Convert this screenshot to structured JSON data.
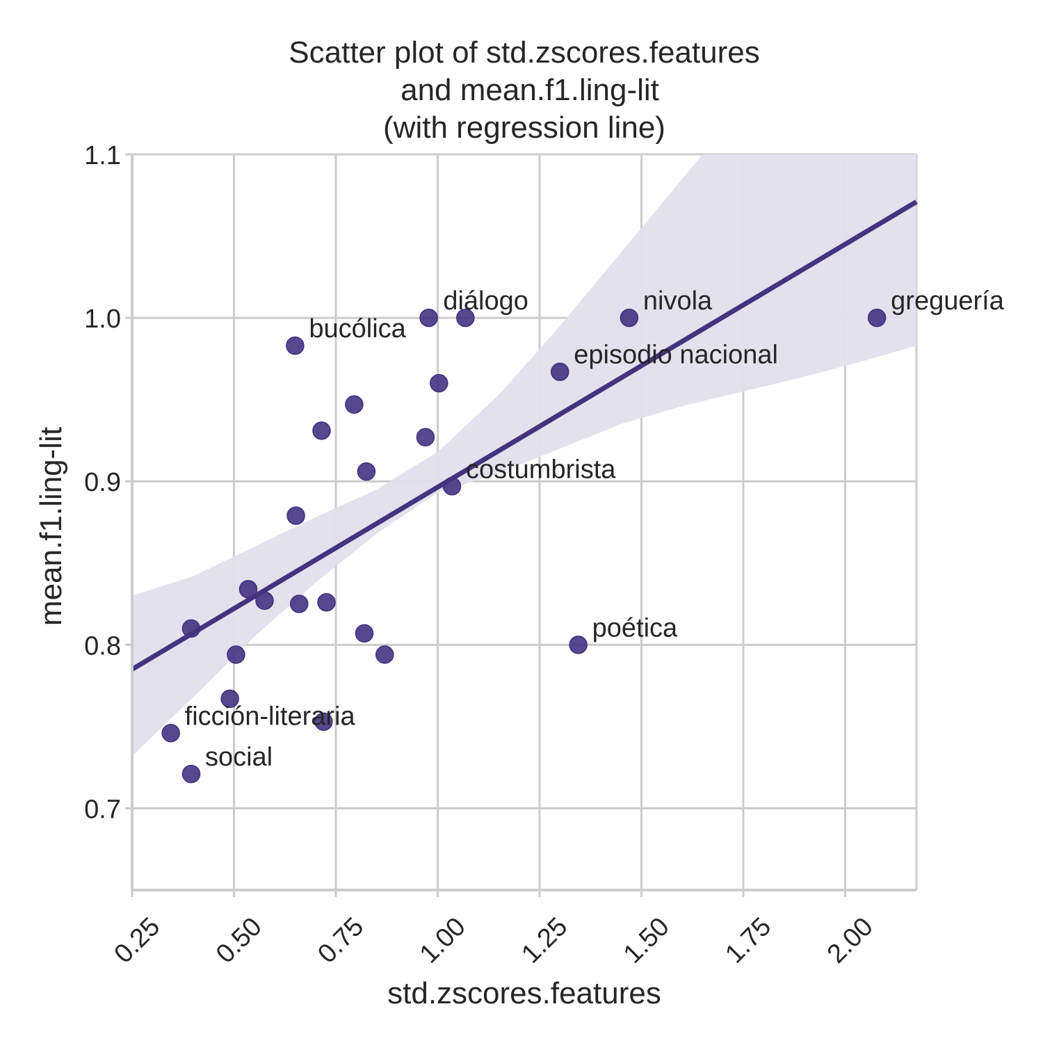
{
  "chart_data": {
    "type": "scatter",
    "title": [
      "Scatter plot of std.zscores.features",
      "and mean.f1.ling-lit",
      "(with regression line)"
    ],
    "xlabel": "std.zscores.features",
    "ylabel": "mean.f1.ling-lit",
    "xlim": [
      0.25,
      2.175
    ],
    "ylim": [
      0.65,
      1.1
    ],
    "xticks": [
      "0.25",
      "0.50",
      "0.75",
      "1.00",
      "1.25",
      "1.50",
      "1.75",
      "2.00"
    ],
    "yticks": [
      "0.7",
      "0.8",
      "0.9",
      "1.0",
      "1.1"
    ],
    "grid": true,
    "colors": {
      "points": "#3f2f7f",
      "line": "#45337f",
      "band": "#e2dfec",
      "grid": "#cccccc"
    },
    "points": [
      {
        "x": 0.345,
        "y": 0.746,
        "label": "ficción-literaria"
      },
      {
        "x": 0.395,
        "y": 0.721,
        "label": "social"
      },
      {
        "x": 0.395,
        "y": 0.81,
        "label": ""
      },
      {
        "x": 0.49,
        "y": 0.767,
        "label": ""
      },
      {
        "x": 0.505,
        "y": 0.794,
        "label": ""
      },
      {
        "x": 0.535,
        "y": 0.834,
        "label": ""
      },
      {
        "x": 0.575,
        "y": 0.827,
        "label": ""
      },
      {
        "x": 0.65,
        "y": 0.983,
        "label": "bucólica"
      },
      {
        "x": 0.652,
        "y": 0.879,
        "label": ""
      },
      {
        "x": 0.66,
        "y": 0.825,
        "label": ""
      },
      {
        "x": 0.715,
        "y": 0.931,
        "label": ""
      },
      {
        "x": 0.72,
        "y": 0.753,
        "label": ""
      },
      {
        "x": 0.727,
        "y": 0.826,
        "label": ""
      },
      {
        "x": 0.795,
        "y": 0.947,
        "label": ""
      },
      {
        "x": 0.82,
        "y": 0.807,
        "label": ""
      },
      {
        "x": 0.825,
        "y": 0.906,
        "label": ""
      },
      {
        "x": 0.87,
        "y": 0.794,
        "label": ""
      },
      {
        "x": 0.97,
        "y": 0.927,
        "label": ""
      },
      {
        "x": 0.978,
        "y": 1.0,
        "label": ""
      },
      {
        "x": 1.003,
        "y": 0.96,
        "label": ""
      },
      {
        "x": 1.035,
        "y": 0.897,
        "label": "costumbrista"
      },
      {
        "x": 1.068,
        "y": 1.0,
        "label": "diálogo",
        "label_offset": [
          -32,
          -12
        ]
      },
      {
        "x": 1.3,
        "y": 0.967,
        "label": "episodio nacional"
      },
      {
        "x": 1.345,
        "y": 0.8,
        "label": "poética"
      },
      {
        "x": 1.47,
        "y": 1.0,
        "label": "nivola"
      },
      {
        "x": 2.078,
        "y": 1.0,
        "label": "greguería"
      }
    ],
    "regression": {
      "line": [
        [
          0.25,
          0.785
        ],
        [
          2.175,
          1.071
        ]
      ],
      "ci_upper": [
        [
          0.25,
          0.83
        ],
        [
          0.4,
          0.842
        ],
        [
          0.55,
          0.86
        ],
        [
          0.7,
          0.878
        ],
        [
          0.85,
          0.895
        ],
        [
          1.0,
          0.918
        ],
        [
          1.15,
          0.953
        ],
        [
          1.3,
          0.995
        ],
        [
          1.45,
          1.04
        ],
        [
          1.6,
          1.085
        ],
        [
          1.7,
          1.115
        ]
      ],
      "ci_lower": [
        [
          0.25,
          0.732
        ],
        [
          0.4,
          0.768
        ],
        [
          0.55,
          0.805
        ],
        [
          0.7,
          0.838
        ],
        [
          0.85,
          0.868
        ],
        [
          1.0,
          0.893
        ],
        [
          1.15,
          0.905
        ],
        [
          1.3,
          0.92
        ],
        [
          1.45,
          0.935
        ],
        [
          1.6,
          0.946
        ],
        [
          1.75,
          0.955
        ],
        [
          1.9,
          0.964
        ],
        [
          2.05,
          0.974
        ],
        [
          2.175,
          0.983
        ]
      ],
      "ci_right_upper": 1.115
    }
  }
}
